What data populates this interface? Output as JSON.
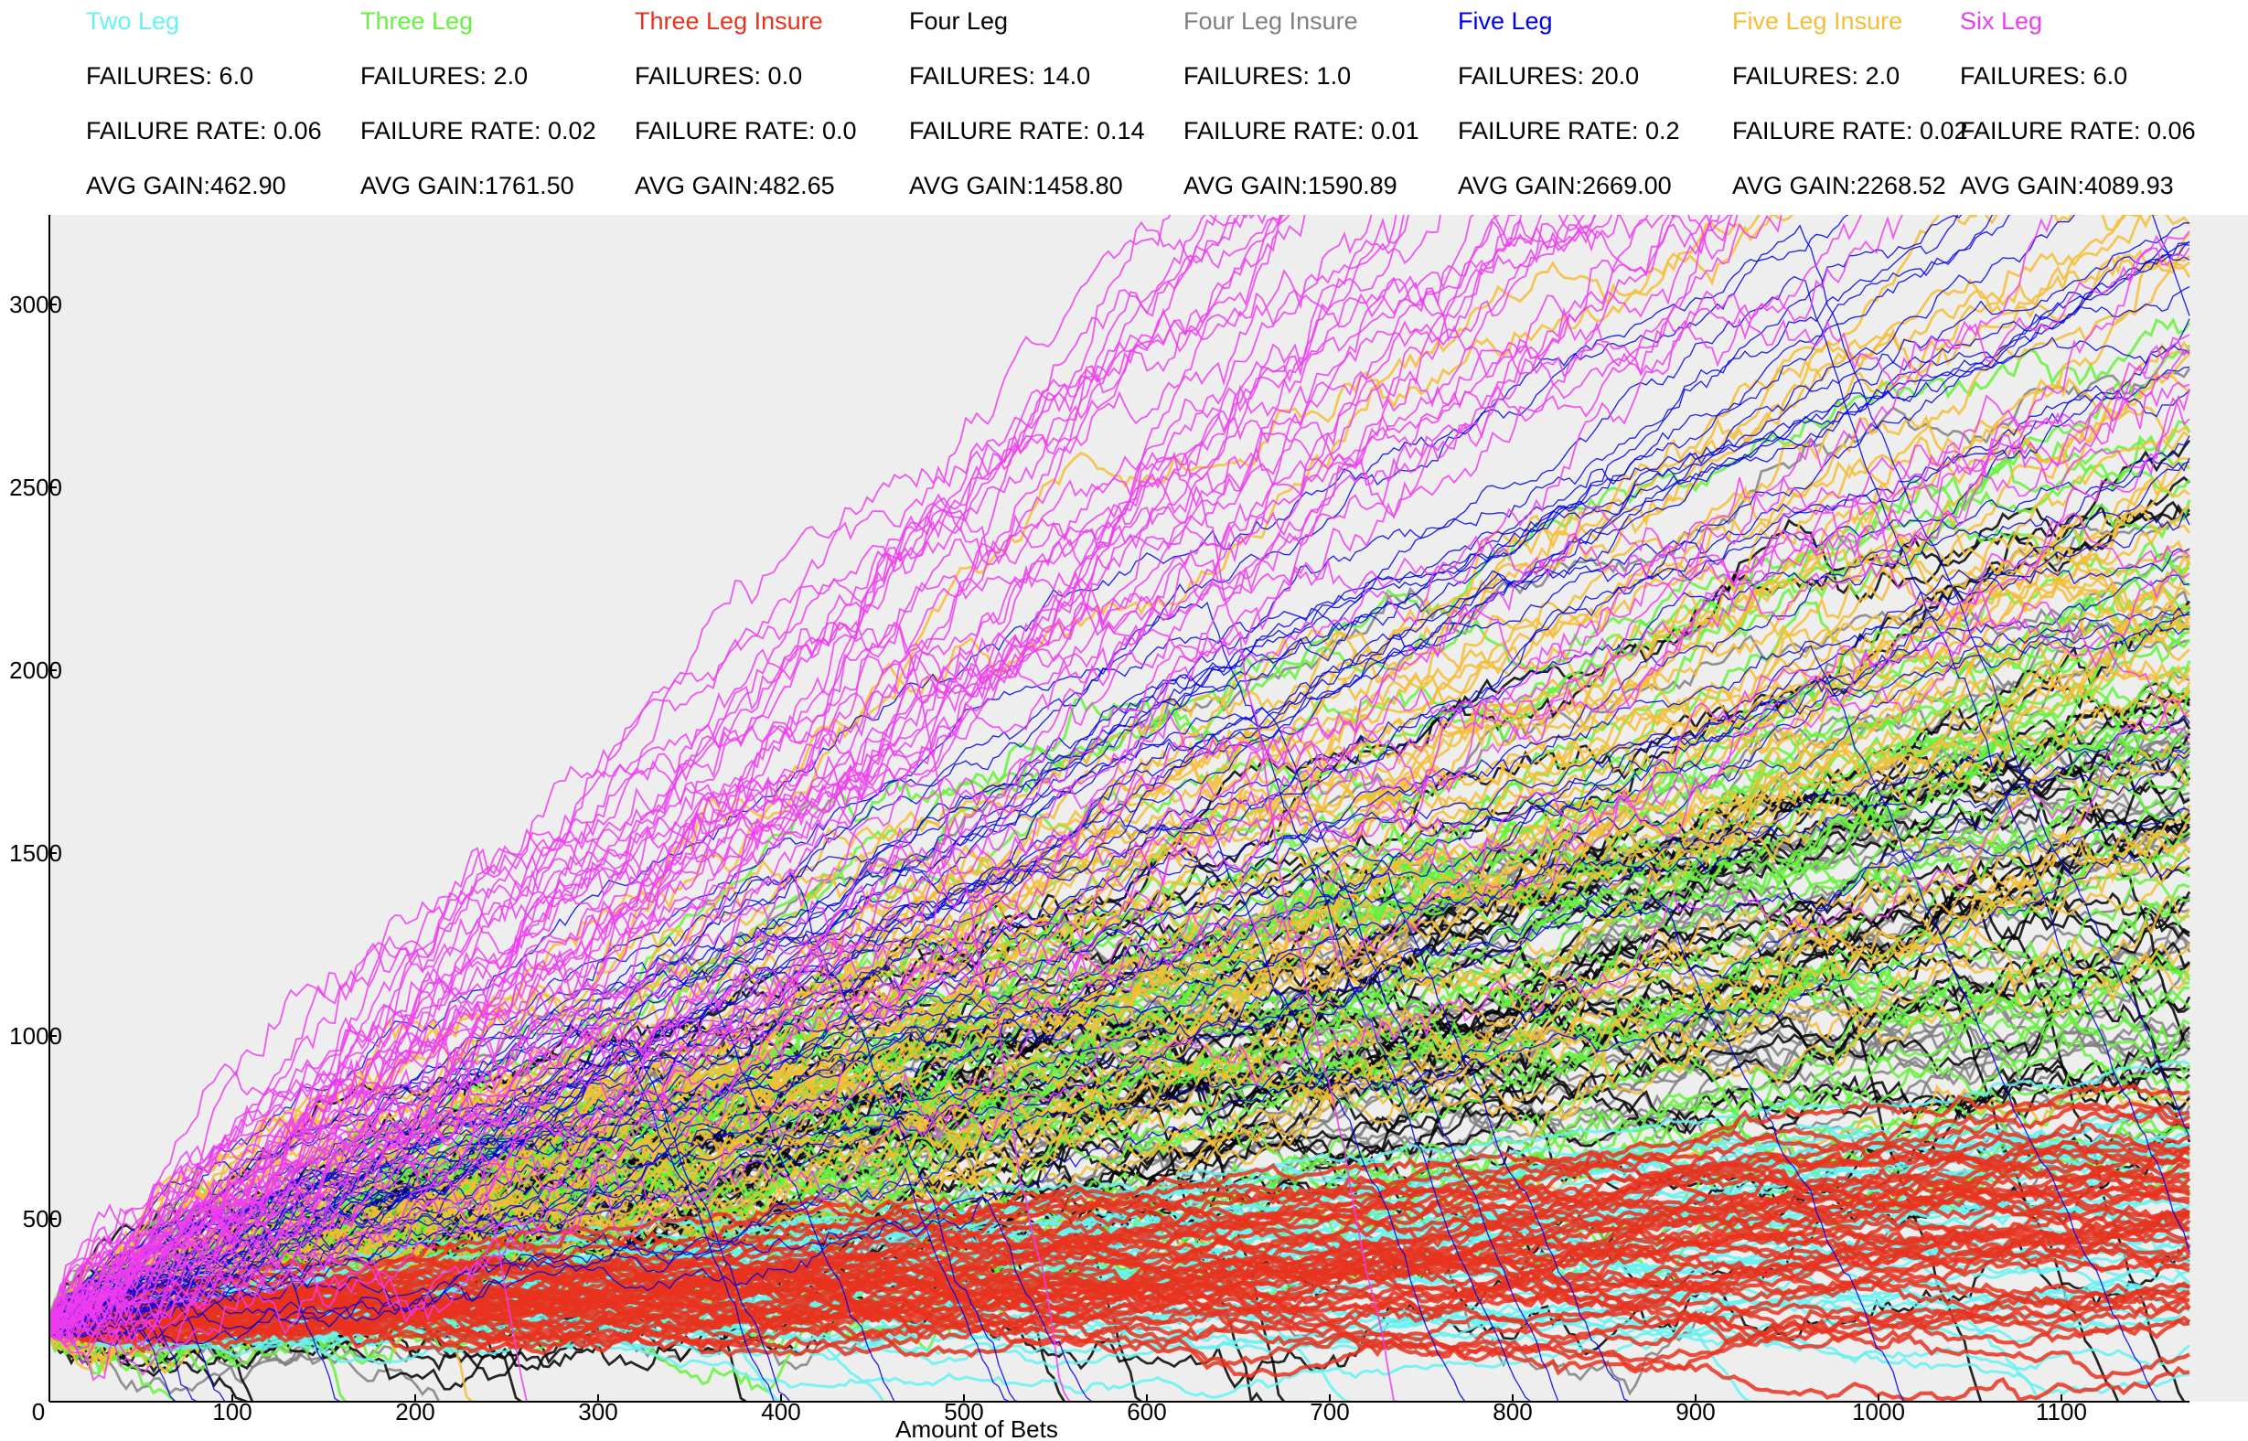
{
  "strategies": [
    {
      "name": "Two Leg",
      "color": "#66f2f2",
      "failures_label": "FAILURES: 6.0",
      "failure_rate_label": "FAILURE RATE: 0.06",
      "avg_gain_label": "AVG GAIN:462.90"
    },
    {
      "name": "Three Leg",
      "color": "#66f23c",
      "failures_label": "FAILURES: 2.0",
      "failure_rate_label": "FAILURE RATE: 0.02",
      "avg_gain_label": "AVG GAIN:1761.50"
    },
    {
      "name": "Three Leg Insure",
      "color": "#e8321e",
      "failures_label": "FAILURES: 0.0",
      "failure_rate_label": "FAILURE RATE: 0.0",
      "avg_gain_label": "AVG GAIN:482.65"
    },
    {
      "name": "Four Leg",
      "color": "#000000",
      "failures_label": "FAILURES: 14.0",
      "failure_rate_label": "FAILURE RATE: 0.14",
      "avg_gain_label": "AVG GAIN:1458.80"
    },
    {
      "name": "Four Leg Insure",
      "color": "#808080",
      "failures_label": "FAILURES: 1.0",
      "failure_rate_label": "FAILURE RATE: 0.01",
      "avg_gain_label": "AVG GAIN:1590.89"
    },
    {
      "name": "Five Leg",
      "color": "#0000e6",
      "failures_label": "FAILURES: 20.0",
      "failure_rate_label": "FAILURE RATE: 0.2",
      "avg_gain_label": "AVG GAIN:2669.00"
    },
    {
      "name": "Five Leg Insure",
      "color": "#f5bd35",
      "failures_label": "FAILURES: 2.0",
      "failure_rate_label": "FAILURE RATE: 0.02",
      "avg_gain_label": "AVG GAIN:2268.52"
    },
    {
      "name": "Six Leg",
      "color": "#ee3cf0",
      "failures_label": "FAILURES: 6.0",
      "failure_rate_label": "FAILURE RATE: 0.06",
      "avg_gain_label": "AVG GAIN:4089.93"
    }
  ],
  "chart_data": {
    "type": "line",
    "xlabel": "Amount of Bets",
    "ylabel": "",
    "xlim": [
      0,
      1170
    ],
    "ylim": [
      0,
      3230
    ],
    "x_ticks": [
      0,
      100,
      200,
      300,
      400,
      500,
      600,
      700,
      800,
      900,
      1000,
      1100
    ],
    "y_ticks": [
      500,
      1000,
      1500,
      2000,
      2500,
      3000
    ],
    "plot_background": "#eeeeee",
    "series": [
      {
        "name": "Two Leg",
        "color": "#66f2f2",
        "avg_gain": 462.9,
        "failures": 6.0,
        "failure_rate": 0.06
      },
      {
        "name": "Three Leg",
        "color": "#66f23c",
        "avg_gain": 1761.5,
        "failures": 2.0,
        "failure_rate": 0.02
      },
      {
        "name": "Three Leg Insure",
        "color": "#e8321e",
        "avg_gain": 482.65,
        "failures": 0.0,
        "failure_rate": 0.0
      },
      {
        "name": "Four Leg",
        "color": "#000000",
        "avg_gain": 1458.8,
        "failures": 14.0,
        "failure_rate": 0.14
      },
      {
        "name": "Four Leg Insure",
        "color": "#808080",
        "avg_gain": 1590.89,
        "failures": 1.0,
        "failure_rate": 0.01
      },
      {
        "name": "Five Leg",
        "color": "#0000e6",
        "avg_gain": 2669.0,
        "failures": 20.0,
        "failure_rate": 0.2
      },
      {
        "name": "Five Leg Insure",
        "color": "#f5bd35",
        "avg_gain": 2268.52,
        "failures": 2.0,
        "failure_rate": 0.02
      },
      {
        "name": "Six Leg",
        "color": "#ee3cf0",
        "avg_gain": 4089.93,
        "failures": 6.0,
        "failure_rate": 0.06
      }
    ]
  }
}
